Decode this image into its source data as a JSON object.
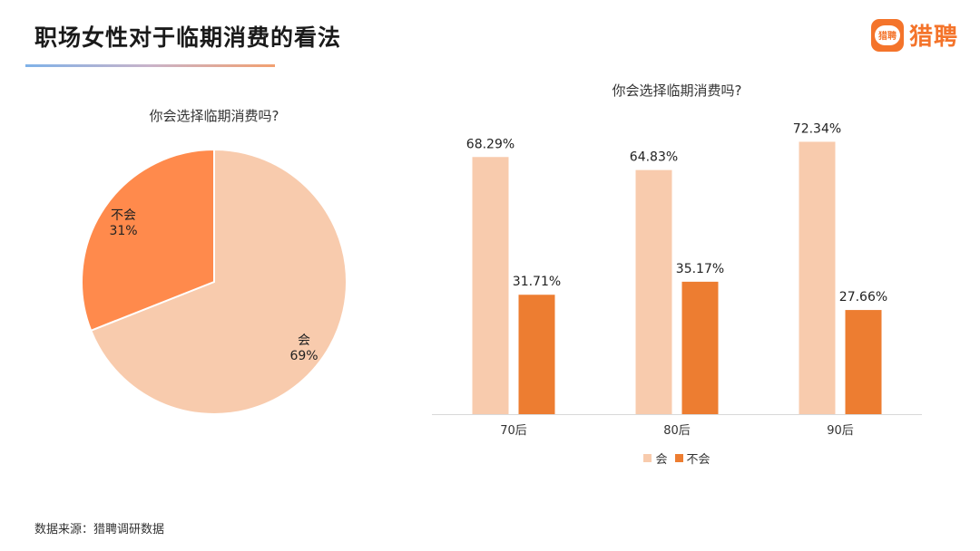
{
  "header": {
    "title": "职场女性对于临期消费的看法",
    "logo_badge_text": "猎聘",
    "logo_text": "猎聘",
    "brand_color": "#f4742b"
  },
  "source_note": "数据来源：猎聘调研数据",
  "chart_data": [
    {
      "type": "pie",
      "title": "你会选择临期消费吗?",
      "slices": [
        {
          "label": "会",
          "value": 69,
          "value_label": "69%",
          "color": "#f8cbad"
        },
        {
          "label": "不会",
          "value": 31,
          "value_label": "31%",
          "color": "#ff8a4c"
        }
      ]
    },
    {
      "type": "bar",
      "title": "你会选择临期消费吗?",
      "categories": [
        "70后",
        "80后",
        "90后"
      ],
      "series": [
        {
          "name": "会",
          "values": [
            68.29,
            64.83,
            72.34
          ],
          "labels": [
            "68.29%",
            "64.83%",
            "72.34%"
          ],
          "color": "#f8cbad"
        },
        {
          "name": "不会",
          "values": [
            31.71,
            35.17,
            27.66
          ],
          "labels": [
            "31.71%",
            "35.17%",
            "27.66%"
          ],
          "color": "#ed7d31"
        }
      ],
      "ylim": [
        0,
        100
      ],
      "grid": false,
      "legend": "bottom"
    }
  ]
}
